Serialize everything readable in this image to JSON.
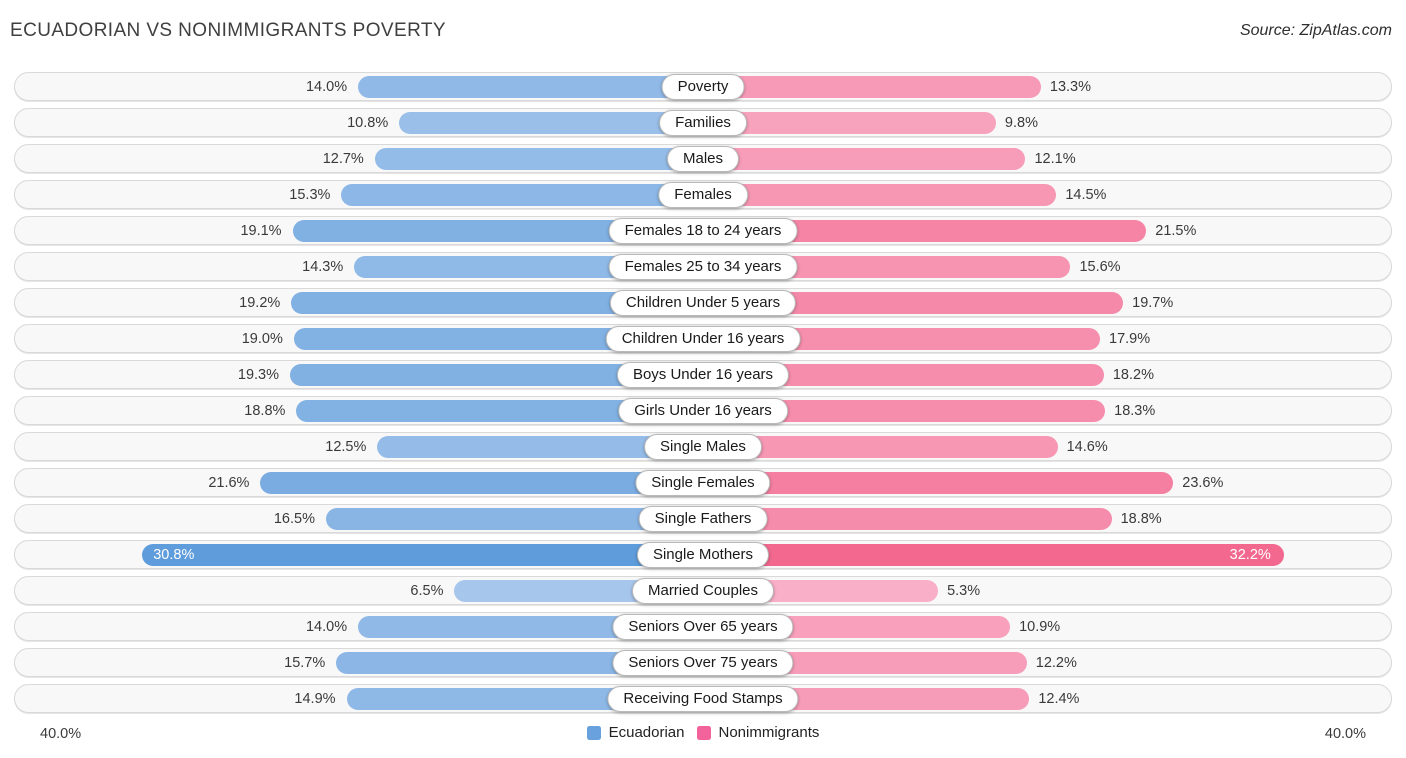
{
  "title": "ECUADORIAN VS NONIMMIGRANTS POVERTY",
  "source": "Source: ZipAtlas.com",
  "axis": {
    "left_label": "40.0%",
    "right_label": "40.0%",
    "max_value": 40.0
  },
  "legend": {
    "items": [
      {
        "label": "Ecuadorian",
        "color": "#68a1de"
      },
      {
        "label": "Nonimmigrants",
        "color": "#f1639a"
      }
    ]
  },
  "chart_data": {
    "type": "bar",
    "orientation": "diverging-horizontal, bars grow outward from center",
    "title": "ECUADORIAN VS NONIMMIGRANTS POVERTY",
    "value_suffix": "%",
    "xlim": [
      -40,
      40
    ],
    "grid": false,
    "legend_position": "bottom-center",
    "categories": [
      "Poverty",
      "Families",
      "Males",
      "Females",
      "Females 18 to 24 years",
      "Females 25 to 34 years",
      "Children Under 5 years",
      "Children Under 16 years",
      "Boys Under 16 years",
      "Girls Under 16 years",
      "Single Males",
      "Single Females",
      "Single Fathers",
      "Single Mothers",
      "Married Couples",
      "Seniors Over 65 years",
      "Seniors Over 75 years",
      "Receiving Food Stamps"
    ],
    "series": [
      {
        "name": "Ecuadorian",
        "side": "left",
        "color_light": "#abc9ed",
        "color_dark": "#5898d9",
        "values": [
          14.0,
          10.8,
          12.7,
          15.3,
          19.1,
          14.3,
          19.2,
          19.0,
          19.3,
          18.8,
          12.5,
          21.6,
          16.5,
          30.8,
          6.5,
          14.0,
          15.7,
          14.9
        ]
      },
      {
        "name": "Nonimmigrants",
        "side": "right",
        "color_light": "#f9b0c8",
        "color_dark": "#f2668d",
        "values": [
          13.3,
          9.8,
          12.1,
          14.5,
          21.5,
          15.6,
          19.7,
          17.9,
          18.2,
          18.3,
          14.6,
          23.6,
          18.8,
          32.2,
          5.3,
          10.9,
          12.2,
          12.4
        ]
      }
    ]
  }
}
